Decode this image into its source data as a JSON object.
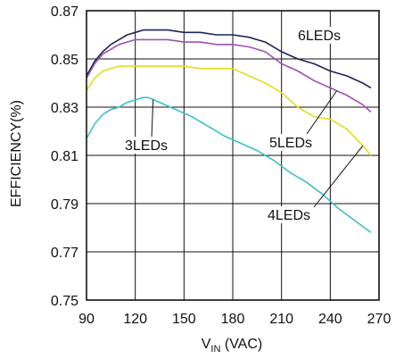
{
  "chart_data": {
    "type": "line",
    "xlabel": {
      "main": "V",
      "sub": "IN",
      "rest": " (VAC)"
    },
    "ylabel": "EFFICIENCY(%)",
    "xlim": [
      90,
      270
    ],
    "ylim": [
      0.75,
      0.87
    ],
    "xticks": [
      90,
      120,
      150,
      180,
      210,
      240,
      270
    ],
    "yticks": [
      0.75,
      0.77,
      0.79,
      0.81,
      0.83,
      0.85,
      0.87
    ],
    "xtick_labels": [
      "90",
      "120",
      "150",
      "180",
      "210",
      "240",
      "270"
    ],
    "ytick_labels": [
      "0.75",
      "0.77",
      "0.79",
      "0.81",
      "0.83",
      "0.85",
      "0.87"
    ],
    "grid": true,
    "series": [
      {
        "name": "6LEDs",
        "color": "#1f2357",
        "x": [
          90,
          95,
          100,
          105,
          110,
          115,
          120,
          125,
          130,
          140,
          150,
          160,
          170,
          180,
          190,
          200,
          210,
          220,
          230,
          240,
          250,
          260,
          265
        ],
        "y": [
          0.843,
          0.849,
          0.853,
          0.856,
          0.858,
          0.86,
          0.861,
          0.862,
          0.862,
          0.862,
          0.861,
          0.861,
          0.86,
          0.86,
          0.859,
          0.857,
          0.853,
          0.85,
          0.848,
          0.845,
          0.843,
          0.84,
          0.838
        ]
      },
      {
        "name": "5LEDs",
        "color": "#a050b4",
        "x": [
          90,
          95,
          100,
          105,
          110,
          115,
          120,
          125,
          130,
          140,
          150,
          160,
          170,
          180,
          190,
          200,
          210,
          220,
          230,
          240,
          250,
          260,
          265
        ],
        "y": [
          0.842,
          0.848,
          0.852,
          0.854,
          0.856,
          0.857,
          0.858,
          0.858,
          0.858,
          0.858,
          0.857,
          0.857,
          0.856,
          0.856,
          0.855,
          0.853,
          0.848,
          0.845,
          0.841,
          0.838,
          0.835,
          0.831,
          0.828
        ]
      },
      {
        "name": "4LEDs",
        "color": "#e6dc1e",
        "x": [
          90,
          95,
          100,
          105,
          110,
          120,
          130,
          140,
          150,
          160,
          170,
          180,
          190,
          200,
          210,
          220,
          230,
          240,
          250,
          260,
          265
        ],
        "y": [
          0.837,
          0.842,
          0.845,
          0.846,
          0.847,
          0.847,
          0.847,
          0.847,
          0.847,
          0.846,
          0.846,
          0.846,
          0.843,
          0.84,
          0.836,
          0.83,
          0.826,
          0.825,
          0.821,
          0.814,
          0.81
        ]
      },
      {
        "name": "3LEDs",
        "color": "#3cc0c8",
        "x": [
          90,
          95,
          100,
          105,
          110,
          115,
          120,
          125,
          128,
          135,
          145,
          155,
          165,
          175,
          185,
          195,
          205,
          215,
          225,
          235,
          245,
          255,
          265
        ],
        "y": [
          0.817,
          0.823,
          0.827,
          0.829,
          0.83,
          0.832,
          0.833,
          0.834,
          0.834,
          0.832,
          0.829,
          0.826,
          0.822,
          0.818,
          0.815,
          0.812,
          0.808,
          0.803,
          0.799,
          0.794,
          0.788,
          0.783,
          0.778
        ]
      }
    ],
    "annotations": [
      {
        "text": "6LEDs",
        "series": "6LEDs"
      },
      {
        "text": "5LEDs",
        "series": "5LEDs"
      },
      {
        "text": "4LEDs",
        "series": "4LEDs"
      },
      {
        "text": "3LEDs",
        "series": "3LEDs"
      }
    ]
  }
}
